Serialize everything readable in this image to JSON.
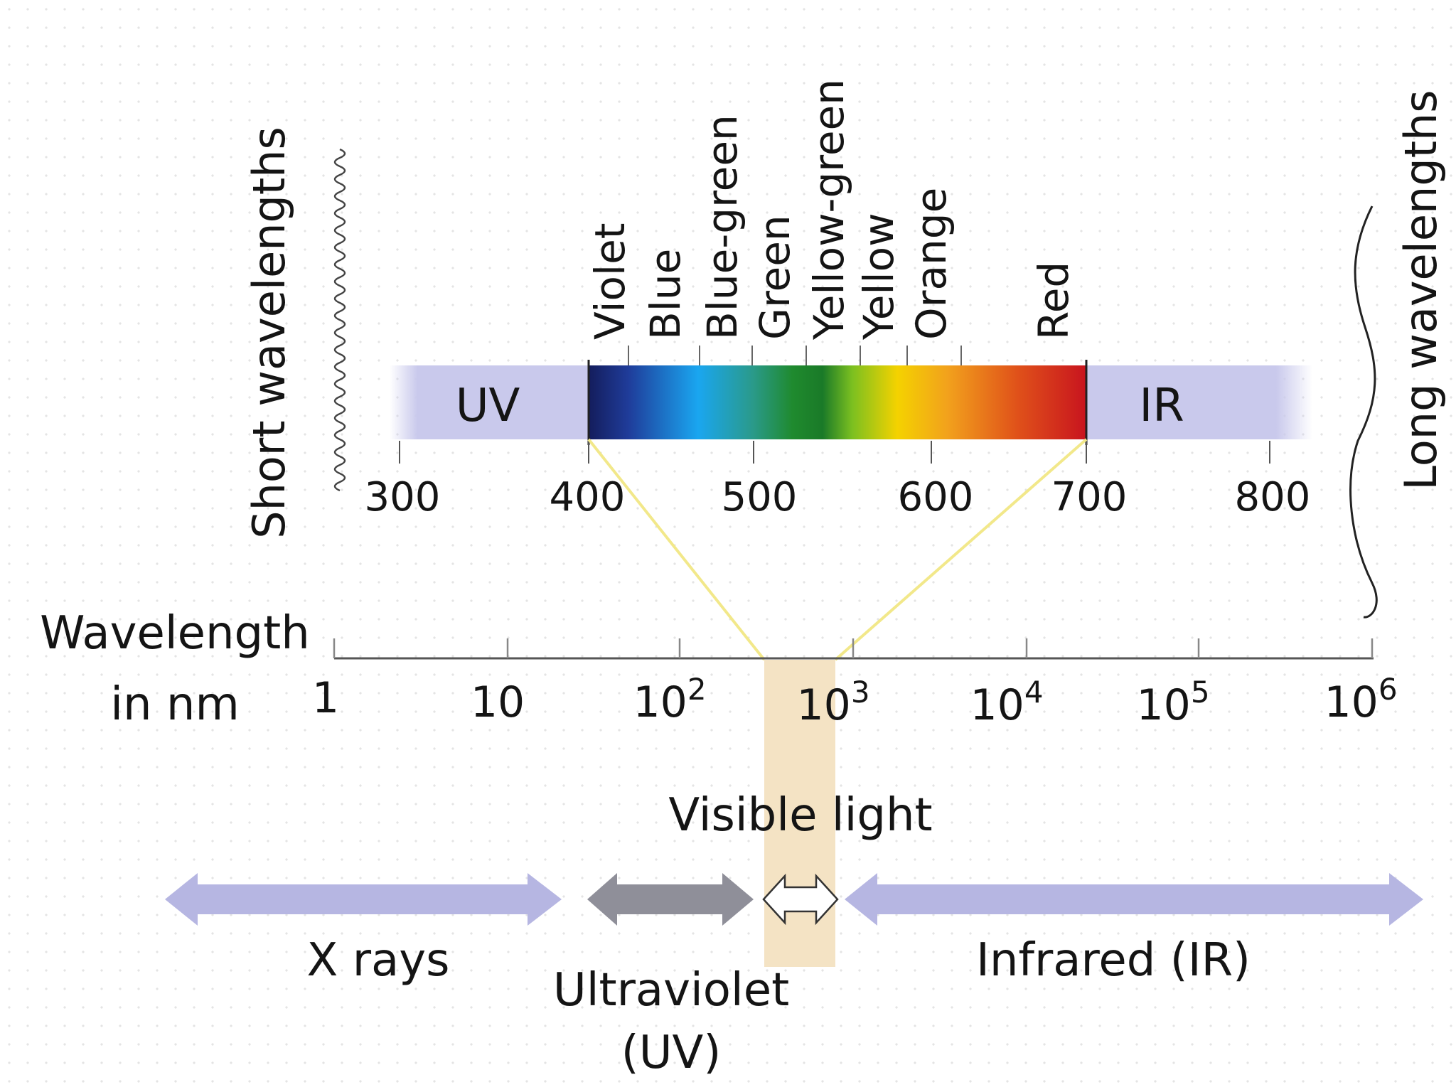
{
  "side_labels": {
    "short": "Short wavelengths",
    "long": "Long wavelengths"
  },
  "visible_spectrum": {
    "band_labels": [
      "UV",
      "IR"
    ],
    "color_names": [
      "Violet",
      "Blue",
      "Blue-green",
      "Green",
      "Yellow-green",
      "Yellow",
      "Orange",
      "Red"
    ],
    "nm_ticks": [
      "300",
      "400",
      "500",
      "600",
      "700",
      "800"
    ],
    "colors": {
      "uv_ir_band": "#c9c9ec",
      "violet": "#1f2a7a",
      "blue": "#1aa6f0",
      "green": "#1f8a2e",
      "yellow": "#f4d200",
      "orange": "#f2a21c",
      "red": "#c8141e",
      "connector": "#f2e88a"
    }
  },
  "wavelength_axis": {
    "label_line1": "Wavelength",
    "label_line2": "in nm",
    "ticks": [
      {
        "base": "1",
        "exp": ""
      },
      {
        "base": "10",
        "exp": ""
      },
      {
        "base": "10",
        "exp": "2"
      },
      {
        "base": "10",
        "exp": "3"
      },
      {
        "base": "10",
        "exp": "4"
      },
      {
        "base": "10",
        "exp": "5"
      },
      {
        "base": "10",
        "exp": "6"
      }
    ]
  },
  "regions": {
    "visible": "Visible light",
    "xrays": "X rays",
    "uv_line1": "Ultraviolet",
    "uv_line2": "(UV)",
    "ir": "Infrared (IR)",
    "colors": {
      "visible_column": "#f4e3c4",
      "xray_arrow": "#b6b6e2",
      "uv_arrow": "#8f8f99",
      "ir_arrow": "#b6b6e2"
    }
  }
}
